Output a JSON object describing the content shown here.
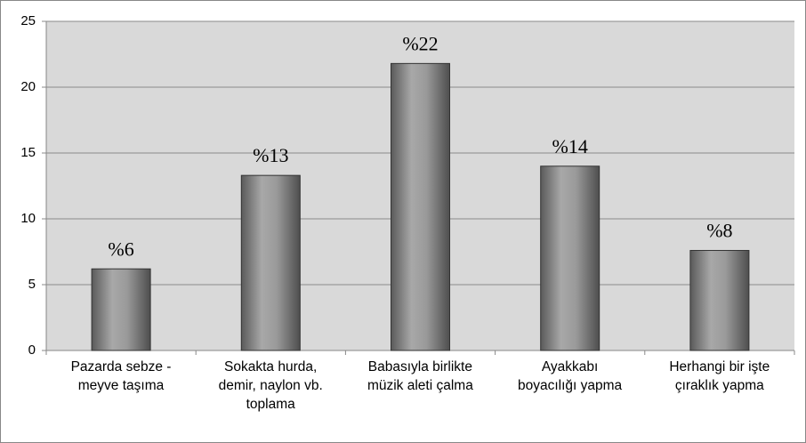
{
  "chart_data": {
    "type": "bar",
    "categories": [
      "Pazarda sebze -\nmeyve taşıma",
      "Sokakta hurda,\ndemir, naylon vb.\ntoplama",
      "Babasıyla birlikte\nmüzik aleti çalma",
      "Ayakkabı\nboyacılığı yapma",
      "Herhangi bir işte\nçıraklık yapma"
    ],
    "values": [
      6.2,
      13.3,
      21.8,
      14,
      7.6
    ],
    "value_labels": [
      "%6",
      "%13",
      "%22",
      "%14",
      "%8"
    ],
    "color": "#8c8c8c",
    "ylim": [
      0,
      25
    ],
    "yticks": [
      0,
      5,
      10,
      15,
      20,
      25
    ],
    "grid": true
  }
}
